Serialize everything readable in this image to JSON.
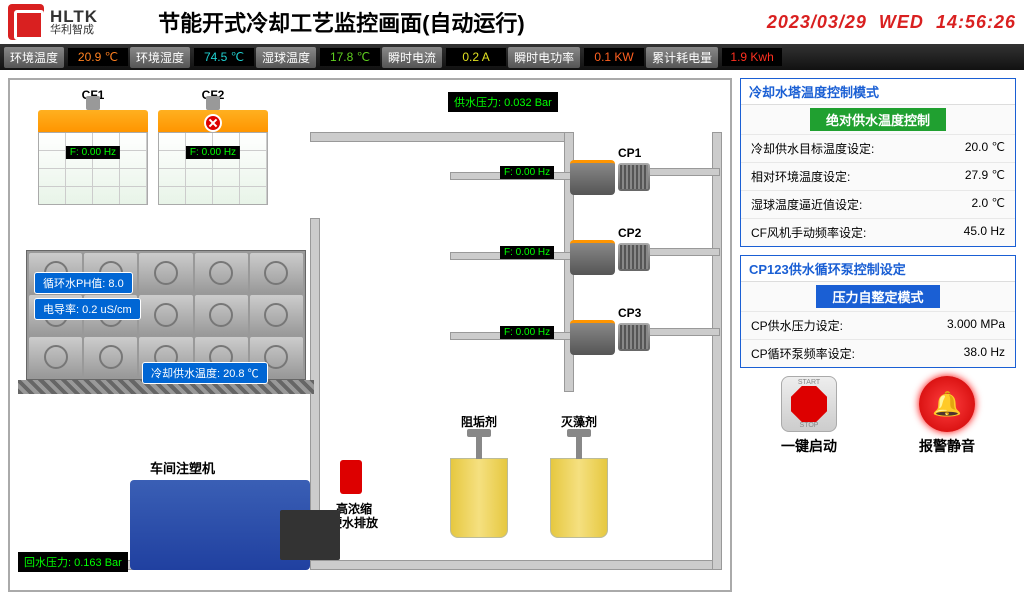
{
  "header": {
    "logo_en": "HLTK",
    "logo_cn": "华利智成",
    "title": "节能开式冷却工艺监控画面(自动运行)",
    "date": "2023/03/29",
    "day": "WED",
    "time": "14:56:26"
  },
  "status": {
    "env_temp_label": "环境温度",
    "env_temp": "20.9 ℃",
    "env_temp_color": "#ff8020",
    "env_hum_label": "环境湿度",
    "env_hum": "74.5 ℃",
    "env_hum_color": "#20d0d0",
    "wet_bulb_label": "湿球温度",
    "wet_bulb": "17.8 ℃",
    "wet_bulb_color": "#60d020",
    "current_label": "瞬时电流",
    "current": "0.2 A",
    "current_color": "#e0e020",
    "power_label": "瞬时电功率",
    "power": "0.1 KW",
    "power_color": "#ff6020",
    "energy_label": "累计耗电量",
    "energy": "1.9 Kwh",
    "energy_color": "#ff3020"
  },
  "diagram": {
    "cf1_label": "CF1",
    "cf1_hz": "F: 0.00 Hz",
    "cf2_label": "CF2",
    "cf2_hz": "F: 0.00 Hz",
    "ph_label": "循环水PH值:  8.0",
    "conductivity_label": "电导率:  0.2 uS/cm",
    "supply_temp_label": "冷却供水温度: 20.8 ℃",
    "supply_pressure": "供水压力: 0.032 Bar",
    "return_pressure": "回水压力: 0.163 Bar",
    "cp1_label": "CP1",
    "cp1_hz": "F: 0.00 Hz",
    "cp2_label": "CP2",
    "cp2_hz": "F: 0.00 Hz",
    "cp3_label": "CP3",
    "cp3_hz": "F: 0.00 Hz",
    "chem1_label": "阻垢剂",
    "chem2_label": "灭藻剂",
    "machine_label": "车间注塑机",
    "valve_label": "高浓缩\n硬水排放"
  },
  "panel1": {
    "title": "冷却水塔温度控制模式",
    "mode": "绝对供水温度控制",
    "mode_bg": "#20a030",
    "r1_label": "冷却供水目标温度设定:",
    "r1_val": "20.0 ℃",
    "r2_label": "相对环境温度设定:",
    "r2_val": "27.9 ℃",
    "r3_label": "湿球温度逼近值设定:",
    "r3_val": "2.0 ℃",
    "r4_label": "CF风机手动频率设定:",
    "r4_val": "45.0 Hz"
  },
  "panel2": {
    "title": "CP123供水循环泵控制设定",
    "mode": "压力自整定模式",
    "mode_bg": "#1a5fd4",
    "r1_label": "CP供水压力设定:",
    "r1_val": "3.000 MPa",
    "r2_label": "CP循环泵频率设定:",
    "r2_val": "38.0 Hz"
  },
  "buttons": {
    "start_label": "一键启动",
    "alarm_label": "报警静音",
    "start_txt": "START",
    "stop_txt": "STOP"
  }
}
